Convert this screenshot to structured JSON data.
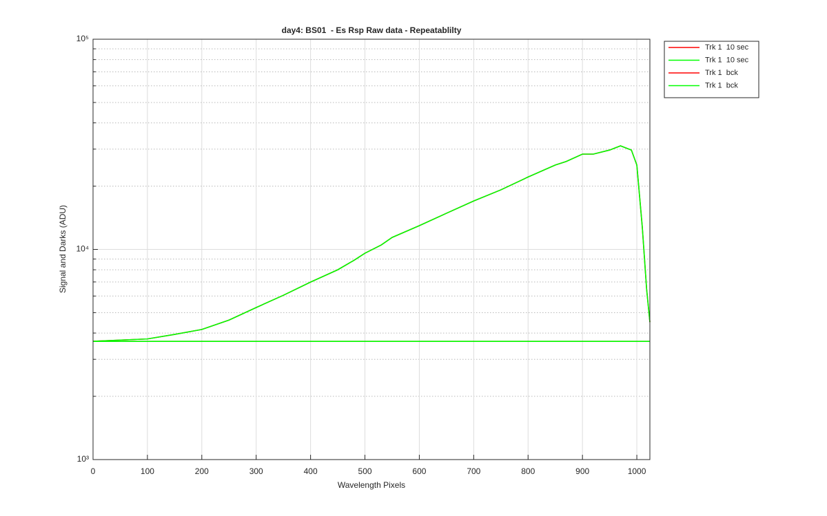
{
  "chart_data": {
    "type": "line",
    "title": "day4: BS01  - Es Rsp Raw data - Repeatablilty",
    "x_label": "Wavelength Pixels",
    "y_label": "Signal and Darks (ADU)",
    "xlim": [
      0,
      1024
    ],
    "xticks": [
      0,
      100,
      200,
      300,
      400,
      500,
      600,
      700,
      800,
      900,
      1000
    ],
    "ylim": [
      1000,
      100000
    ],
    "yticks": [
      {
        "value": 1000,
        "label": "10³"
      },
      {
        "value": 10000,
        "label": "10⁴"
      },
      {
        "value": 100000,
        "label": "10⁵"
      }
    ],
    "log_y": true,
    "grid": true,
    "minor_grid": true,
    "legend": "outside-top-right",
    "series": [
      {
        "name": "Trk 1  10 sec",
        "color": "#ff0000",
        "x": [
          0,
          100,
          150,
          200,
          250,
          300,
          350,
          400,
          450,
          480,
          500,
          530,
          550,
          600,
          650,
          700,
          750,
          800,
          850,
          870,
          900,
          920,
          950,
          970,
          990,
          1000,
          1010,
          1018,
          1024
        ],
        "values": [
          3656,
          3750,
          3940,
          4160,
          4610,
          5290,
          6050,
          6990,
          8000,
          8880,
          9590,
          10500,
          11400,
          12970,
          14860,
          17000,
          19200,
          22100,
          25200,
          26200,
          28400,
          28400,
          29700,
          31100,
          29700,
          25200,
          12800,
          6470,
          4510
        ]
      },
      {
        "name": "Trk 1  10 sec",
        "color": "#00ff00",
        "x": [
          0,
          100,
          150,
          200,
          250,
          300,
          350,
          400,
          450,
          480,
          500,
          530,
          550,
          600,
          650,
          700,
          750,
          800,
          850,
          870,
          900,
          920,
          950,
          970,
          990,
          1000,
          1010,
          1018,
          1024
        ],
        "values": [
          3656,
          3750,
          3940,
          4160,
          4610,
          5290,
          6050,
          6990,
          8000,
          8880,
          9590,
          10500,
          11400,
          12970,
          14860,
          17000,
          19200,
          22100,
          25200,
          26200,
          28400,
          28400,
          29700,
          31100,
          29700,
          25200,
          12800,
          6470,
          4510
        ]
      },
      {
        "name": "Trk 1  bck",
        "color": "#ff0000",
        "x": [
          0,
          1024
        ],
        "values": [
          3650,
          3650
        ]
      },
      {
        "name": "Trk 1  bck",
        "color": "#00ff00",
        "x": [
          0,
          1024
        ],
        "values": [
          3650,
          3650
        ]
      }
    ]
  }
}
